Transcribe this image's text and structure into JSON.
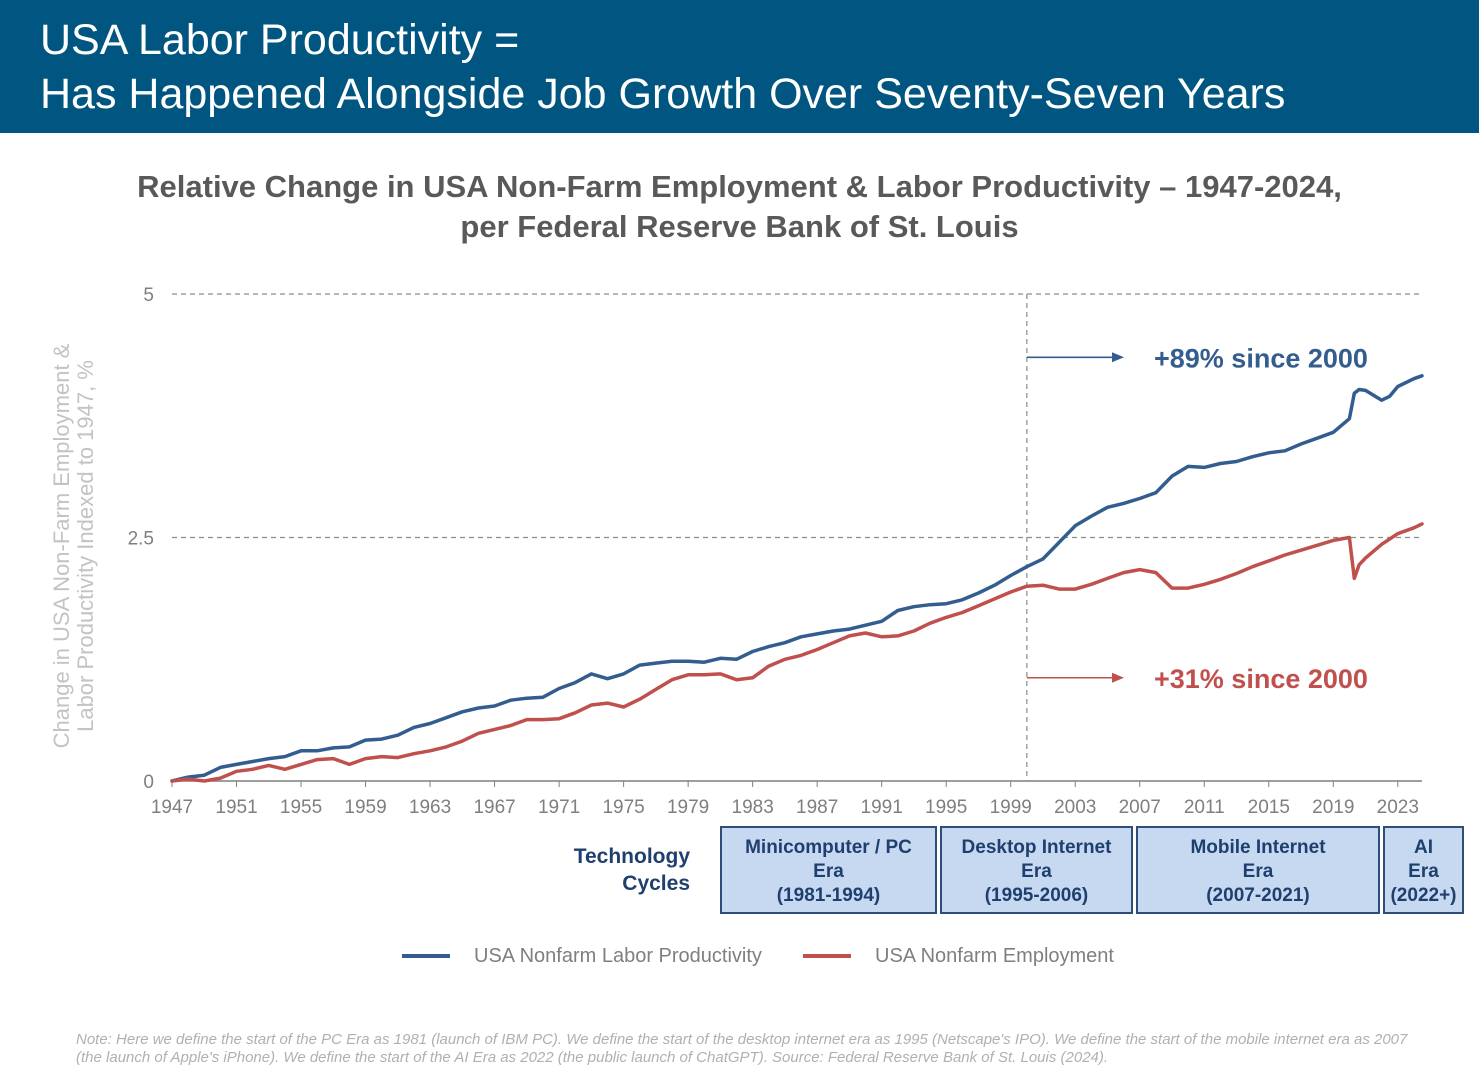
{
  "header": {
    "title_line1": "USA Labor Productivity =",
    "title_line2": "Has Happened Alongside Job Growth Over Seventy-Seven Years"
  },
  "colors": {
    "header_bg": "#005581",
    "productivity": "#335d8f",
    "employment": "#c0504d",
    "era_fill": "#c6d9f1",
    "era_border": "#2f4d7a"
  },
  "chart_data": {
    "type": "line",
    "title": "Relative Change in USA Non-Farm Employment & Labor Productivity – 1947-2024,",
    "subtitle": "per Federal Reserve Bank of St. Louis",
    "ylabel_line1": "Change in USA Non-Farm Employment &",
    "ylabel_line2": "Labor Productivity Indexed to 1947, %",
    "xlabel": "",
    "xlim": [
      1947,
      2024.5
    ],
    "ylim": [
      0,
      5
    ],
    "yticks": [
      0,
      2.5,
      5
    ],
    "ytick_labels": [
      "0",
      "2.5",
      "5"
    ],
    "xticks": [
      1947,
      1951,
      1955,
      1959,
      1963,
      1967,
      1971,
      1975,
      1979,
      1983,
      1987,
      1991,
      1995,
      1999,
      2003,
      2007,
      2011,
      2015,
      2019,
      2023
    ],
    "grid": "dashed horizontal at 2.5 and 5",
    "reference_line_x": 2000,
    "series": [
      {
        "name": "USA Nonfarm Labor Productivity",
        "x": [
          1947,
          1948,
          1949,
          1950,
          1951,
          1952,
          1953,
          1954,
          1955,
          1956,
          1957,
          1958,
          1959,
          1960,
          1961,
          1962,
          1963,
          1964,
          1965,
          1966,
          1967,
          1968,
          1969,
          1970,
          1971,
          1972,
          1973,
          1974,
          1975,
          1976,
          1977,
          1978,
          1979,
          1980,
          1981,
          1982,
          1983,
          1984,
          1985,
          1986,
          1987,
          1988,
          1989,
          1990,
          1991,
          1992,
          1993,
          1994,
          1995,
          1996,
          1997,
          1998,
          1999,
          2000,
          2001,
          2002,
          2003,
          2004,
          2005,
          2006,
          2007,
          2008,
          2009,
          2010,
          2011,
          2012,
          2013,
          2014,
          2015,
          2016,
          2017,
          2018,
          2019,
          2020,
          2020.3,
          2020.6,
          2021,
          2022,
          2022.5,
          2023,
          2024,
          2024.5
        ],
        "y": [
          0.0,
          0.04,
          0.06,
          0.14,
          0.17,
          0.2,
          0.23,
          0.25,
          0.31,
          0.31,
          0.34,
          0.35,
          0.42,
          0.43,
          0.47,
          0.55,
          0.59,
          0.65,
          0.71,
          0.75,
          0.77,
          0.83,
          0.85,
          0.86,
          0.95,
          1.01,
          1.1,
          1.05,
          1.1,
          1.19,
          1.21,
          1.23,
          1.23,
          1.22,
          1.26,
          1.25,
          1.33,
          1.38,
          1.42,
          1.48,
          1.51,
          1.54,
          1.56,
          1.6,
          1.64,
          1.75,
          1.79,
          1.81,
          1.82,
          1.86,
          1.93,
          2.01,
          2.11,
          2.2,
          2.28,
          2.45,
          2.62,
          2.72,
          2.81,
          2.85,
          2.9,
          2.96,
          3.13,
          3.23,
          3.22,
          3.26,
          3.28,
          3.33,
          3.37,
          3.39,
          3.46,
          3.52,
          3.58,
          3.72,
          3.98,
          4.02,
          4.01,
          3.91,
          3.95,
          4.05,
          4.13,
          4.16
        ]
      },
      {
        "name": "USA Nonfarm Employment",
        "x": [
          1947,
          1948,
          1949,
          1950,
          1951,
          1952,
          1953,
          1954,
          1955,
          1956,
          1957,
          1958,
          1959,
          1960,
          1961,
          1962,
          1963,
          1964,
          1965,
          1966,
          1967,
          1968,
          1969,
          1970,
          1971,
          1972,
          1973,
          1974,
          1975,
          1976,
          1977,
          1978,
          1979,
          1980,
          1981,
          1982,
          1983,
          1984,
          1985,
          1986,
          1987,
          1988,
          1989,
          1990,
          1991,
          1992,
          1993,
          1994,
          1995,
          1996,
          1997,
          1998,
          1999,
          2000,
          2001,
          2002,
          2003,
          2004,
          2005,
          2006,
          2007,
          2008,
          2009,
          2010,
          2011,
          2012,
          2013,
          2014,
          2015,
          2016,
          2017,
          2018,
          2019,
          2020,
          2020.3,
          2020.6,
          2021,
          2022,
          2023,
          2024,
          2024.5
        ],
        "y": [
          0.0,
          0.02,
          0.0,
          0.03,
          0.1,
          0.12,
          0.16,
          0.12,
          0.17,
          0.22,
          0.23,
          0.17,
          0.23,
          0.25,
          0.24,
          0.28,
          0.31,
          0.35,
          0.41,
          0.49,
          0.53,
          0.57,
          0.63,
          0.63,
          0.64,
          0.7,
          0.78,
          0.8,
          0.76,
          0.84,
          0.94,
          1.04,
          1.09,
          1.09,
          1.1,
          1.04,
          1.06,
          1.18,
          1.25,
          1.29,
          1.35,
          1.42,
          1.49,
          1.52,
          1.48,
          1.49,
          1.54,
          1.62,
          1.68,
          1.73,
          1.8,
          1.87,
          1.94,
          2.0,
          2.01,
          1.97,
          1.97,
          2.02,
          2.08,
          2.14,
          2.17,
          2.14,
          1.98,
          1.98,
          2.02,
          2.07,
          2.13,
          2.2,
          2.26,
          2.32,
          2.37,
          2.42,
          2.47,
          2.5,
          2.08,
          2.22,
          2.29,
          2.43,
          2.54,
          2.6,
          2.64
        ]
      }
    ],
    "annotations": [
      {
        "text": "+89% since 2000",
        "series": "USA Nonfarm Labor Productivity",
        "y": 4.35
      },
      {
        "text": "+31% since 2000",
        "series": "USA Nonfarm Employment",
        "y": 1.06
      }
    ],
    "legend_position": "bottom"
  },
  "technology_cycles": {
    "label_line1": "Technology",
    "label_line2": "Cycles",
    "eras": [
      {
        "line1": "Minicomputer / PC",
        "line2": "Era",
        "line3": "(1981-1994)"
      },
      {
        "line1": "Desktop Internet",
        "line2": "Era",
        "line3": "(1995-2006)"
      },
      {
        "line1": "Mobile Internet",
        "line2": "Era",
        "line3": "(2007-2021)"
      },
      {
        "line1": "AI",
        "line2": "Era",
        "line3": "(2022+)"
      }
    ]
  },
  "legend": {
    "productivity_label": "USA Nonfarm Labor Productivity",
    "employment_label": "USA Nonfarm Employment"
  },
  "note": "Note: Here we define the start of the PC Era as 1981 (launch of IBM PC). We define the start of the desktop internet era as 1995 (Netscape's IPO). We define the start of the mobile internet era as 2007 (the launch of Apple's iPhone). We define the start of the AI Era as 2022 (the public launch of ChatGPT). Source: Federal Reserve Bank of St. Louis (2024)."
}
